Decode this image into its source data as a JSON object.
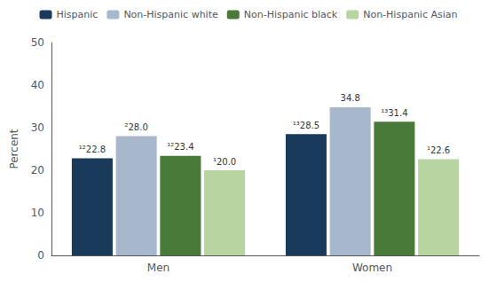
{
  "chart_data": {
    "type": "bar",
    "categories": [
      "Men",
      "Women"
    ],
    "series": [
      {
        "name": "Hispanic",
        "color": "#1a3a5c",
        "values": [
          22.8,
          28.5
        ],
        "value_labels": [
          "¹²22.8",
          "¹³28.5"
        ]
      },
      {
        "name": "Non-Hispanic white",
        "color": "#a8b8cc",
        "values": [
          28.0,
          34.8
        ],
        "value_labels": [
          "²28.0",
          "34.8"
        ]
      },
      {
        "name": "Non-Hispanic black",
        "color": "#4a7a3a",
        "values": [
          23.4,
          31.4
        ],
        "value_labels": [
          "¹²23.4",
          "¹³31.4"
        ]
      },
      {
        "name": "Non-Hispanic Asian",
        "color": "#b8d4a0",
        "values": [
          20.0,
          22.6
        ],
        "value_labels": [
          "¹20.0",
          "¹22.6"
        ]
      }
    ],
    "ylabel": "Percent",
    "ylim": [
      0,
      50
    ],
    "yticks": [
      0,
      10,
      20,
      30,
      40,
      50
    ],
    "grid": false,
    "legend": "top",
    "data_labels": true
  }
}
